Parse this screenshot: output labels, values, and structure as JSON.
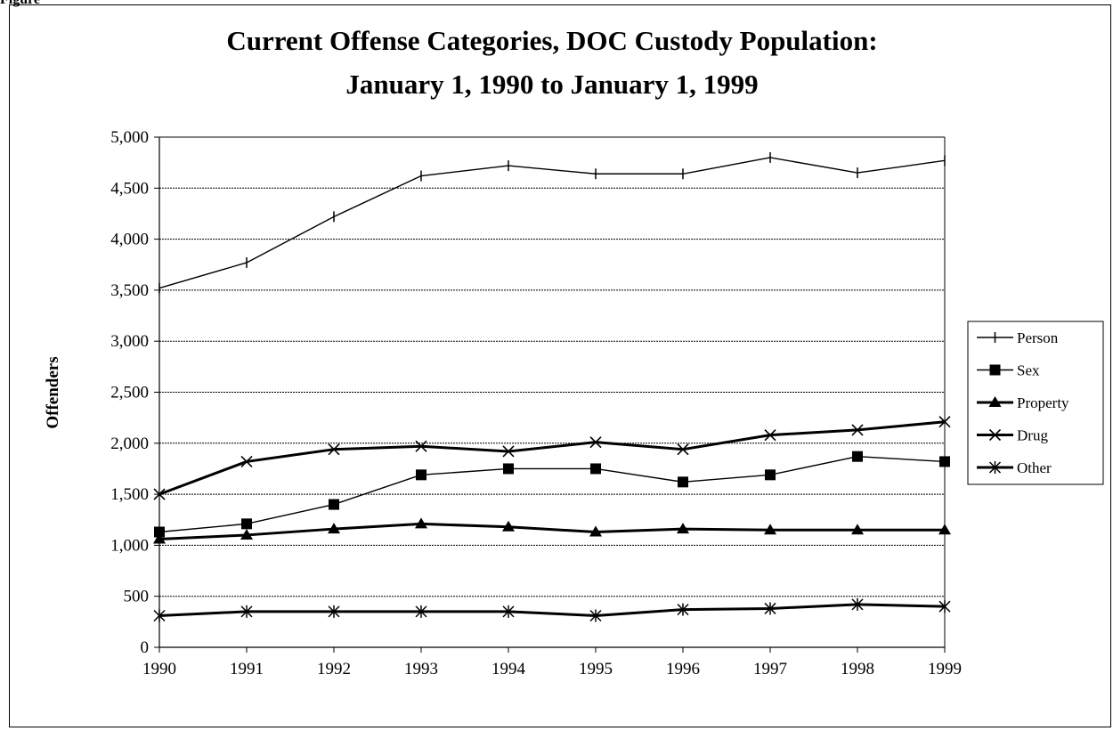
{
  "figure_label": "Figure",
  "chart_data": {
    "type": "line",
    "title": "Current Offense Categories, DOC Custody Population:",
    "subtitle": "January 1, 1990 to January 1, 1999",
    "xlabel": "",
    "ylabel": "Offenders",
    "x": [
      "1990",
      "1991",
      "1992",
      "1993",
      "1994",
      "1995",
      "1996",
      "1997",
      "1998",
      "1999"
    ],
    "ylim": [
      0,
      5000
    ],
    "yticks": [
      0,
      500,
      1000,
      1500,
      2000,
      2500,
      3000,
      3500,
      4000,
      4500,
      5000
    ],
    "ytick_labels": [
      "0",
      "500",
      "1,000",
      "1,500",
      "2,000",
      "2,500",
      "3,000",
      "3,500",
      "4,000",
      "4,500",
      "5,000"
    ],
    "grid": true,
    "legend_position": "right",
    "series": [
      {
        "name": "Person",
        "marker": "plus",
        "weight": "thin",
        "values": [
          3520,
          3770,
          4220,
          4620,
          4720,
          4640,
          4640,
          4800,
          4650,
          4770
        ]
      },
      {
        "name": "Sex",
        "marker": "square",
        "weight": "thin",
        "values": [
          1130,
          1210,
          1400,
          1690,
          1750,
          1750,
          1620,
          1690,
          1870,
          1820
        ]
      },
      {
        "name": "Property",
        "marker": "triangle",
        "weight": "thick",
        "values": [
          1060,
          1100,
          1160,
          1210,
          1180,
          1130,
          1160,
          1150,
          1150,
          1150
        ]
      },
      {
        "name": "Drug",
        "marker": "x",
        "weight": "thick",
        "values": [
          1500,
          1820,
          1940,
          1970,
          1920,
          2010,
          1940,
          2080,
          2130,
          2210
        ]
      },
      {
        "name": "Other",
        "marker": "star",
        "weight": "thick",
        "values": [
          310,
          350,
          350,
          350,
          350,
          310,
          370,
          380,
          420,
          400
        ]
      }
    ]
  }
}
